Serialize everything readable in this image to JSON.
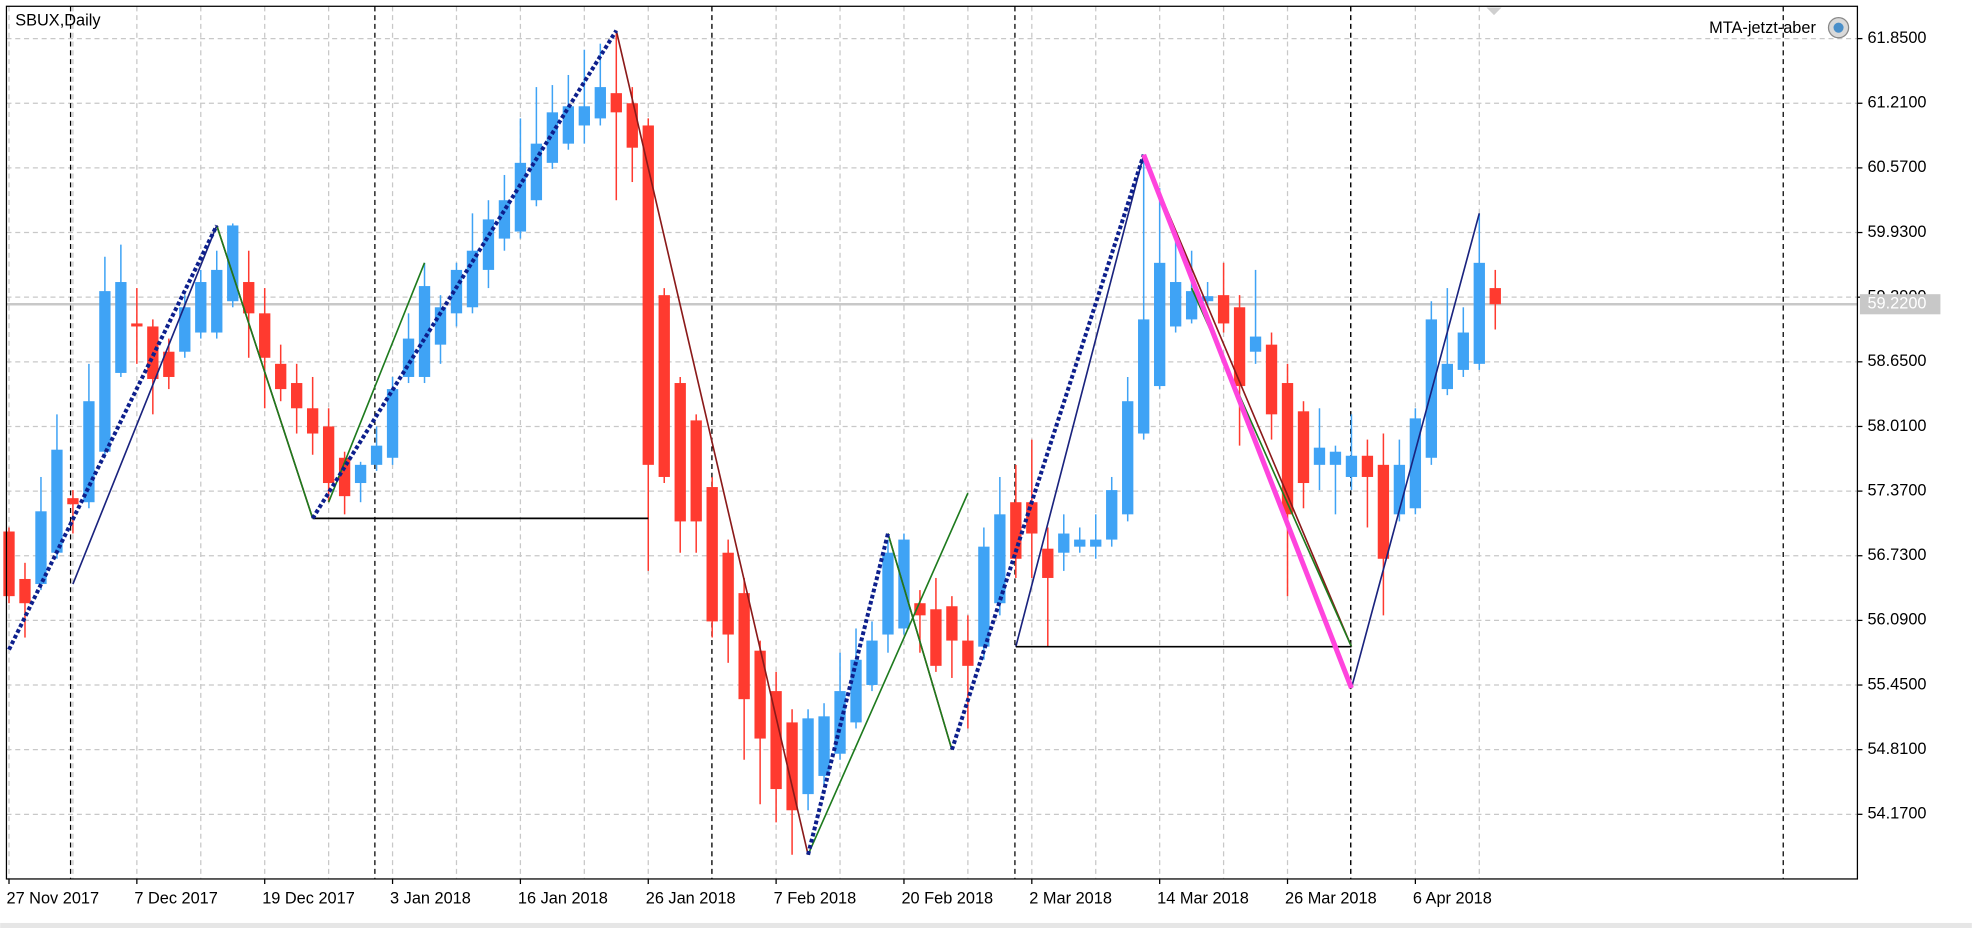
{
  "chart_data": {
    "type": "candlestick",
    "title": "SBUX,Daily",
    "indicator_label": "MTA-jetzt-aber",
    "up_color": "#3fa3f5",
    "down_color": "#ff3a2f",
    "grid": true,
    "categories": [
      "27 Nov 2017",
      null,
      null,
      null,
      null,
      null,
      null,
      null,
      "7 Dec 2017",
      null,
      null,
      null,
      null,
      null,
      null,
      null,
      "19 Dec 2017",
      null,
      null,
      null,
      null,
      null,
      null,
      null,
      "3 Jan 2018",
      null,
      null,
      null,
      null,
      null,
      null,
      null,
      "16 Jan 2018",
      null,
      null,
      null,
      null,
      null,
      null,
      null,
      "26 Jan 2018",
      null,
      null,
      null,
      null,
      null,
      null,
      null,
      "7 Feb 2018",
      null,
      null,
      null,
      null,
      null,
      null,
      null,
      "20 Feb 2018",
      null,
      null,
      null,
      null,
      null,
      null,
      null,
      "2 Mar 2018",
      null,
      null,
      null,
      null,
      null,
      null,
      null,
      "14 Mar 2018",
      null,
      null,
      null,
      null,
      null,
      null,
      null,
      "26 Mar 2018",
      null,
      null,
      null,
      null,
      null,
      null,
      null,
      "6 Apr 2018",
      null,
      null,
      null,
      null,
      null
    ],
    "open": [
      56.97,
      56.5,
      56.45,
      56.76,
      57.3,
      57.26,
      57.76,
      58.54,
      59.03,
      59.0,
      58.75,
      58.75,
      58.94,
      58.94,
      59.25,
      59.44,
      59.13,
      58.63,
      58.44,
      58.19,
      58.01,
      57.7,
      57.45,
      57.63,
      57.7,
      58.5,
      58.5,
      58.82,
      59.13,
      59.19,
      59.56,
      59.87,
      59.94,
      60.25,
      60.62,
      60.81,
      60.99,
      61.06,
      61.31,
      61.21,
      60.99,
      59.31,
      58.44,
      58.07,
      57.41,
      56.76,
      56.36,
      55.79,
      55.39,
      55.08,
      54.37,
      54.55,
      54.77,
      55.08,
      55.45,
      55.95,
      56.01,
      56.26,
      56.2,
      56.23,
      55.89,
      55.83,
      56.26,
      57.26,
      57.26,
      56.8,
      56.76,
      56.82,
      56.82,
      56.89,
      57.14,
      57.94,
      58.41,
      59.0,
      59.07,
      59.25,
      59.31,
      59.19,
      58.75,
      58.82,
      58.44,
      58.16,
      57.63,
      57.63,
      57.51,
      57.72,
      57.63,
      57.14,
      57.2,
      57.7,
      58.38,
      58.57,
      58.63,
      59.38
    ],
    "high": [
      57.01,
      56.66,
      57.51,
      58.13,
      57.38,
      58.63,
      59.69,
      59.81,
      59.38,
      59.07,
      58.88,
      59.31,
      59.56,
      59.75,
      60.02,
      59.75,
      59.38,
      58.82,
      58.63,
      58.5,
      58.19,
      57.76,
      57.66,
      58.01,
      58.5,
      59.13,
      59.63,
      59.31,
      59.63,
      60.12,
      60.25,
      60.5,
      61.06,
      61.37,
      61.39,
      61.49,
      61.74,
      61.8,
      61.93,
      61.37,
      61.06,
      59.38,
      58.5,
      58.13,
      57.51,
      56.89,
      56.51,
      55.89,
      55.58,
      55.21,
      55.21,
      55.27,
      55.77,
      56.01,
      56.08,
      56.89,
      56.95,
      56.39,
      56.51,
      56.33,
      56.14,
      57.01,
      57.51,
      57.63,
      57.88,
      57.01,
      57.14,
      57.01,
      57.14,
      57.51,
      58.5,
      60.7,
      60.37,
      59.87,
      59.75,
      59.44,
      59.63,
      59.31,
      59.56,
      58.94,
      58.63,
      58.26,
      58.19,
      57.82,
      58.13,
      57.88,
      57.94,
      57.88,
      58.19,
      59.25,
      59.38,
      59.19,
      60.12,
      59.56
    ],
    "low": [
      56.26,
      55.92,
      56.39,
      56.7,
      56.95,
      57.2,
      57.7,
      58.5,
      58.63,
      58.13,
      58.38,
      58.69,
      58.88,
      58.88,
      59.19,
      58.69,
      58.19,
      58.26,
      57.94,
      57.73,
      57.26,
      57.14,
      57.26,
      57.57,
      57.63,
      58.44,
      58.44,
      58.63,
      59.0,
      59.13,
      59.38,
      59.75,
      59.87,
      60.19,
      60.56,
      60.75,
      60.81,
      60.99,
      60.25,
      60.43,
      56.58,
      57.45,
      56.76,
      56.76,
      55.92,
      55.67,
      54.71,
      54.27,
      54.09,
      53.77,
      54.21,
      54.46,
      54.71,
      55.02,
      55.39,
      55.77,
      55.95,
      55.77,
      55.58,
      55.52,
      55.02,
      55.7,
      56.14,
      56.51,
      56.51,
      55.83,
      56.58,
      56.76,
      56.7,
      56.82,
      57.07,
      57.88,
      58.38,
      58.94,
      59.03,
      59.19,
      58.94,
      57.82,
      58.63,
      57.88,
      56.33,
      57.2,
      57.38,
      57.14,
      57.38,
      57.01,
      56.14,
      57.07,
      57.14,
      57.63,
      58.32,
      58.5,
      58.57,
      58.97
    ],
    "close": [
      56.33,
      56.26,
      57.17,
      57.78,
      57.24,
      58.26,
      59.35,
      59.44,
      59.0,
      58.48,
      58.5,
      59.19,
      59.44,
      59.56,
      60.0,
      59.13,
      58.69,
      58.38,
      58.19,
      57.94,
      57.45,
      57.32,
      57.63,
      57.82,
      58.38,
      58.88,
      59.4,
      59.19,
      59.56,
      59.75,
      60.06,
      60.25,
      60.62,
      60.81,
      61.12,
      61.18,
      61.18,
      61.37,
      61.12,
      60.77,
      57.63,
      57.51,
      57.07,
      57.07,
      56.08,
      55.95,
      55.31,
      54.92,
      54.42,
      54.21,
      55.12,
      55.14,
      55.39,
      55.7,
      55.89,
      56.76,
      56.89,
      56.14,
      55.64,
      55.89,
      55.64,
      56.82,
      57.14,
      56.7,
      56.95,
      56.51,
      56.95,
      56.89,
      56.89,
      57.38,
      58.26,
      59.07,
      59.63,
      59.44,
      59.35,
      59.3,
      59.03,
      58.41,
      58.9,
      58.13,
      57.14,
      57.45,
      57.8,
      57.76,
      57.72,
      57.51,
      56.7,
      57.63,
      58.09,
      59.07,
      58.63,
      58.94,
      59.63,
      59.22
    ],
    "xlim": [
      -0.16,
      115.66
    ],
    "ylim": [
      53.53,
      62.17
    ],
    "yticks": [
      {
        "value": 61.85,
        "label": "61.8500"
      },
      {
        "value": 61.21,
        "label": "61.2100"
      },
      {
        "value": 60.57,
        "label": "60.5700"
      },
      {
        "value": 59.93,
        "label": "59.9300"
      },
      {
        "value": 59.29,
        "label": "59.2900"
      },
      {
        "value": 58.65,
        "label": "58.6500"
      },
      {
        "value": 58.01,
        "label": "58.0100"
      },
      {
        "value": 57.37,
        "label": "57.3700"
      },
      {
        "value": 56.73,
        "label": "56.7300"
      },
      {
        "value": 56.09,
        "label": "56.0900"
      },
      {
        "value": 55.45,
        "label": "55.4500"
      },
      {
        "value": 54.81,
        "label": "54.8100"
      },
      {
        "value": 54.17,
        "label": "54.1700"
      }
    ],
    "current_price": {
      "value": 59.22,
      "label": "59.2200",
      "color": "#c8c8c8"
    },
    "lines": [
      {
        "color": "#8b1a1a",
        "style": "thin",
        "x": [
          13,
          19,
          null,
          38,
          50,
          null,
          55,
          59,
          null,
          71,
          84
        ],
        "y": [
          60.0,
          57.1,
          null,
          61.93,
          53.77,
          null,
          56.95,
          54.81,
          null,
          60.7,
          55.83
        ]
      },
      {
        "color": "#1e7b1e",
        "style": "thin",
        "x": [
          13,
          19,
          null,
          20,
          26,
          null,
          50,
          60,
          null,
          55,
          59,
          null,
          74,
          84
        ],
        "y": [
          60.0,
          57.1,
          null,
          57.26,
          59.63,
          null,
          53.77,
          57.35,
          null,
          56.95,
          54.81,
          null,
          59.38,
          55.83
        ]
      },
      {
        "color": "#1a237e",
        "style": "thin",
        "x": [
          4,
          13,
          null,
          63,
          71,
          null,
          84,
          92
        ],
        "y": [
          56.45,
          60.0,
          null,
          55.83,
          60.7,
          null,
          55.42,
          60.12
        ]
      },
      {
        "color": "#000000",
        "style": "thin",
        "x": [
          19,
          40,
          null,
          63,
          84
        ],
        "y": [
          57.1,
          57.1,
          null,
          55.83,
          55.83
        ]
      },
      {
        "color": "#0d1f8c",
        "style": "dashed",
        "x": [
          0,
          13,
          null,
          19,
          38,
          null,
          50,
          55,
          null,
          59,
          71
        ],
        "y": [
          55.8,
          60.0,
          null,
          57.1,
          61.93,
          null,
          53.77,
          56.95,
          null,
          54.81,
          60.7
        ]
      },
      {
        "color": "#ff44dd",
        "style": "thick",
        "x": [
          71,
          84
        ],
        "y": [
          60.7,
          55.42
        ]
      }
    ]
  }
}
